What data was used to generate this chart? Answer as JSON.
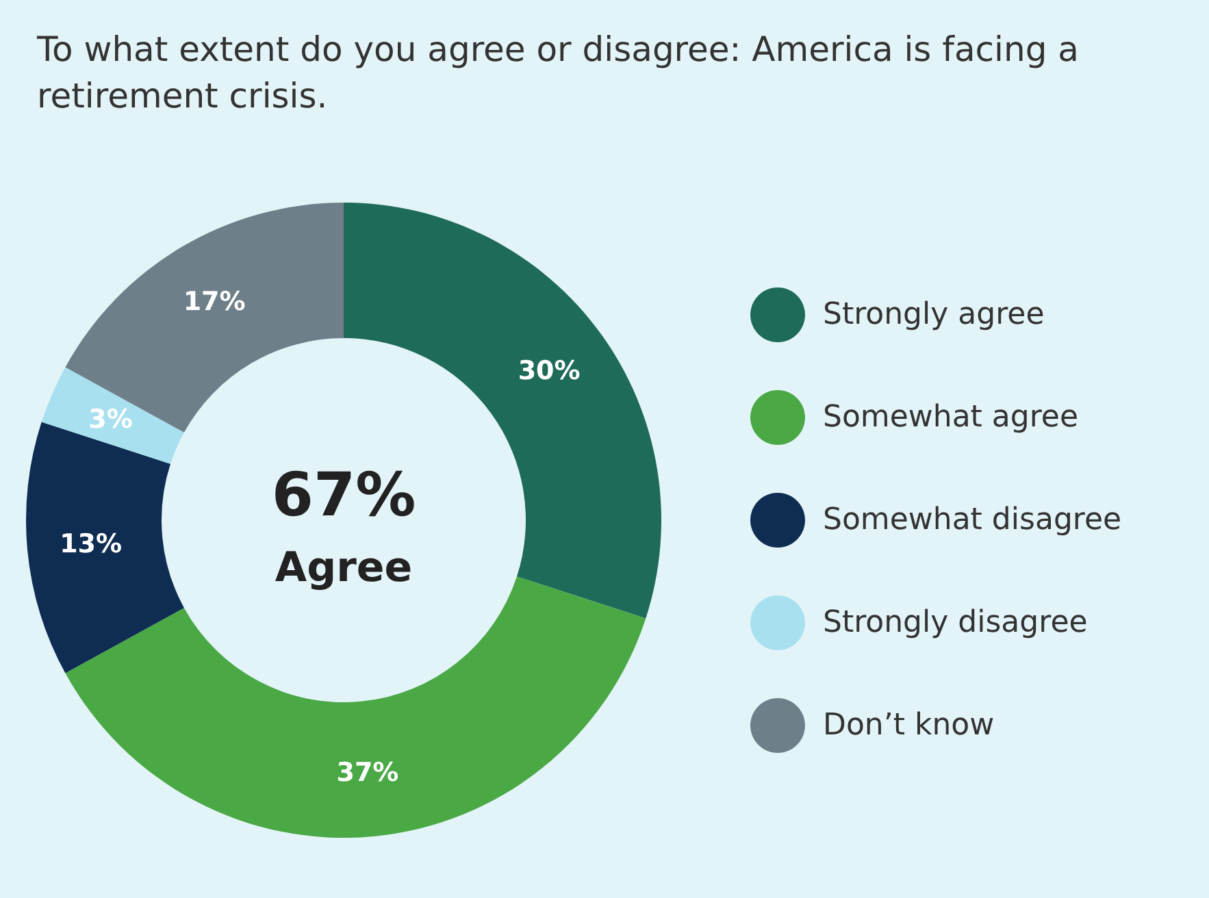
{
  "chart_data": {
    "type": "donut",
    "title": "To what extent do you agree or disagree: America is facing a retirement crisis.",
    "categories": [
      "Strongly agree",
      "Somewhat agree",
      "Somewhat disagree",
      "Strongly disagree",
      "Don’t know"
    ],
    "values": [
      30,
      37,
      13,
      3,
      17
    ],
    "value_labels": [
      "30%",
      "37%",
      "13%",
      "3%",
      "17%"
    ],
    "colors": [
      "#1e6b5a",
      "#4aa845",
      "#0f2d52",
      "#a8e0ef",
      "#6e7f8a"
    ],
    "annotations": [
      "67%",
      "Agree"
    ],
    "legend": "right"
  }
}
